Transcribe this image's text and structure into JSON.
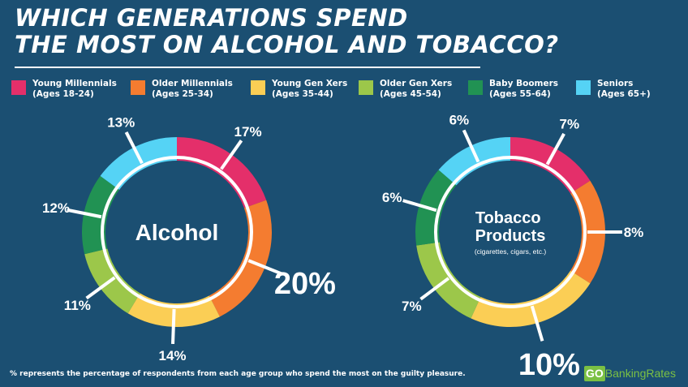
{
  "title_lines": [
    "WHICH GENERATIONS SPEND",
    "THE MOST ON ALCOHOL AND TOBACCO?"
  ],
  "legend": [
    {
      "name": "Young Millennials",
      "ages": "(Ages 18-24)",
      "color": "#e42f6a"
    },
    {
      "name": "Older Millennials",
      "ages": "(Ages 25-34)",
      "color": "#f47c30"
    },
    {
      "name": "Young Gen Xers",
      "ages": "(Ages 35-44)",
      "color": "#fbce55"
    },
    {
      "name": "Older Gen Xers",
      "ages": "(Ages 45-54)",
      "color": "#9cc74a"
    },
    {
      "name": "Baby Boomers",
      "ages": "(Ages 55-64)",
      "color": "#219253"
    },
    {
      "name": "Seniors",
      "ages": "(Ages 65+)",
      "color": "#55d3f5"
    }
  ],
  "chart_data": [
    {
      "type": "pie",
      "title": "Alcohol",
      "subtitle": "",
      "categories": [
        "Young Millennials",
        "Older Millennials",
        "Young Gen Xers",
        "Older Gen Xers",
        "Baby Boomers",
        "Seniors"
      ],
      "values": [
        17,
        20,
        14,
        11,
        12,
        13
      ],
      "labels": [
        "17%",
        "20%",
        "14%",
        "11%",
        "12%",
        "13%"
      ],
      "highlight": "Older Millennials"
    },
    {
      "type": "pie",
      "title": "Tobacco Products",
      "subtitle": "(cigarettes, cigars, etc.)",
      "categories": [
        "Young Millennials",
        "Older Millennials",
        "Young Gen Xers",
        "Older Gen Xers",
        "Baby Boomers",
        "Seniors"
      ],
      "values": [
        7,
        8,
        10,
        7,
        6,
        6
      ],
      "labels": [
        "7%",
        "8%",
        "10%",
        "7%",
        "6%",
        "6%"
      ],
      "highlight": "Young Gen Xers"
    }
  ],
  "footnote": "% represents the percentage of respondents from each age group who spend the most on the guilty pleasure.",
  "brand": {
    "go": "GO",
    "rest": "BankingRates"
  }
}
